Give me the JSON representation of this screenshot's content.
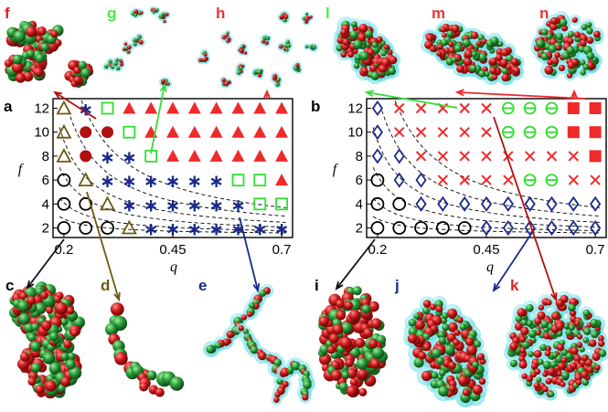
{
  "colors": {
    "red": "#ee2a2a",
    "darkred": "#b01010",
    "green": "#33dd33",
    "olive": "#6b5a10",
    "navy": "#1a2a8a",
    "black": "#000000",
    "cyan": "#7fe6ee",
    "sphere_green": "#2a9a3a",
    "sphere_red": "#cc1a1a"
  },
  "labels": {
    "a": "a",
    "b": "b",
    "c": "c",
    "d": "d",
    "e": "e",
    "f": "f",
    "g": "g",
    "h": "h",
    "i": "i",
    "j": "j",
    "k": "k",
    "l": "l",
    "m": "m",
    "n": "n"
  },
  "chart_data": [
    {
      "panel": "a",
      "type": "scatter",
      "xlabel": "q",
      "ylabel": "f",
      "xticks": [
        "0.2",
        "0.45",
        "0.7"
      ],
      "yticks": [
        "2",
        "4",
        "6",
        "8",
        "10",
        "12"
      ],
      "xlim": [
        0.175,
        0.725
      ],
      "ylim": [
        1.2,
        12.8
      ],
      "x": [
        0.2,
        0.25,
        0.3,
        0.35,
        0.4,
        0.45,
        0.5,
        0.55,
        0.6,
        0.65,
        0.7
      ],
      "phase_grid": {
        "f=12": [
          "triangle-olive",
          "star-navy",
          "square-green",
          "triangle-red",
          "triangle-red",
          "triangle-red",
          "triangle-red",
          "triangle-red",
          "triangle-red",
          "triangle-red",
          "triangle-red"
        ],
        "f=10": [
          "triangle-olive",
          "circle-red",
          "circle-red",
          "square-green",
          "triangle-red",
          "triangle-red",
          "triangle-red",
          "triangle-red",
          "triangle-red",
          "triangle-red",
          "triangle-red"
        ],
        "f=8": [
          "triangle-olive",
          "circle-red",
          "star-navy",
          "star-navy",
          "square-green",
          "triangle-red",
          "triangle-red",
          "triangle-red",
          "triangle-red",
          "triangle-red",
          "triangle-red"
        ],
        "f=6": [
          "circle-black",
          "triangle-olive",
          "star-navy",
          "star-navy",
          "star-navy",
          "star-navy",
          "star-navy",
          "star-navy",
          "square-green",
          "square-green",
          "triangle-red"
        ],
        "f=4": [
          "circle-black",
          "circle-black",
          "triangle-olive",
          "star-navy",
          "star-navy",
          "star-navy",
          "star-navy",
          "star-navy",
          "star-navy",
          "square-green",
          "square-green"
        ],
        "f=2": [
          "circle-black",
          "circle-black",
          "circle-black",
          "triangle-olive",
          "star-navy",
          "star-navy",
          "star-navy",
          "star-navy",
          "star-navy",
          "star-navy",
          "star-navy"
        ]
      }
    },
    {
      "panel": "b",
      "type": "scatter",
      "xlabel": "q",
      "ylabel": "f",
      "xticks": [
        "0.2",
        "0.45",
        "0.7"
      ],
      "yticks": [
        "2",
        "4",
        "6",
        "8",
        "10",
        "12"
      ],
      "xlim": [
        0.175,
        0.725
      ],
      "ylim": [
        1.2,
        12.8
      ],
      "x": [
        0.2,
        0.25,
        0.3,
        0.35,
        0.4,
        0.45,
        0.5,
        0.55,
        0.6,
        0.65,
        0.7
      ],
      "phase_grid": {
        "f=12": [
          "diamond-navy",
          "x-red",
          "x-red",
          "x-red",
          "x-red",
          "x-red",
          "circlebar-green",
          "circlebar-green",
          "circlebar-green",
          "square-red",
          "square-red"
        ],
        "f=10": [
          "diamond-navy",
          "x-red",
          "x-red",
          "x-red",
          "x-red",
          "x-red",
          "circlebar-green",
          "circlebar-green",
          "circlebar-green",
          "square-red",
          "square-red"
        ],
        "f=8": [
          "diamond-navy",
          "diamond-navy",
          "x-red",
          "x-red",
          "x-red",
          "x-red",
          "x-red",
          "x-red",
          "x-red",
          "x-red",
          "square-red"
        ],
        "f=6": [
          "circle-black",
          "diamond-navy",
          "diamond-navy",
          "x-red",
          "x-red",
          "x-red",
          "x-red",
          "circlebar-green",
          "circlebar-green",
          "x-red",
          "x-red"
        ],
        "f=4": [
          "circle-black",
          "circle-black",
          "diamond-navy",
          "diamond-navy",
          "diamond-navy",
          "diamond-navy",
          "diamond-navy",
          "diamond-navy",
          "diamond-navy",
          "diamond-navy",
          "diamond-navy"
        ],
        "f=2": [
          "circle-black",
          "circle-black",
          "circle-black",
          "circle-black",
          "circle-black",
          "diamond-navy",
          "diamond-navy",
          "diamond-navy",
          "diamond-navy",
          "diamond-navy",
          "diamond-navy"
        ]
      }
    }
  ]
}
